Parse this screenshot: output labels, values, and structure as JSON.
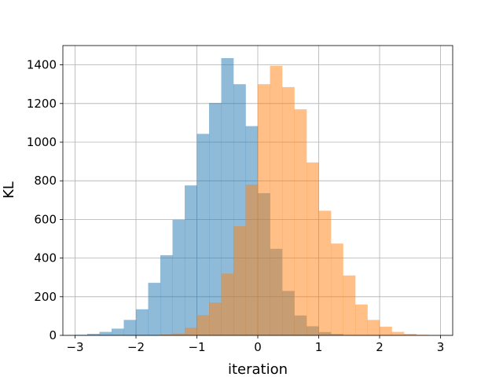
{
  "chart_data": {
    "type": "bar",
    "title": "",
    "xlabel": "iteration",
    "ylabel": "KL",
    "xlim": [
      -3.2,
      3.2
    ],
    "ylim": [
      0,
      1500
    ],
    "xticks": [
      -3,
      -2,
      -1,
      0,
      1,
      2,
      3
    ],
    "xtick_labels": [
      "−3",
      "−2",
      "−1",
      "0",
      "1",
      "2",
      "3"
    ],
    "yticks": [
      0,
      200,
      400,
      600,
      800,
      1000,
      1200,
      1400
    ],
    "ytick_labels": [
      "0",
      "200",
      "400",
      "600",
      "800",
      "1000",
      "1200",
      "1400"
    ],
    "grid": true,
    "series": [
      {
        "color": "#1f77b4",
        "opacity": 0.5,
        "bin_edges": [
          -3.0,
          -2.8,
          -2.6,
          -2.4,
          -2.2,
          -2.0,
          -1.8,
          -1.6,
          -1.4,
          -1.2,
          -1.0,
          -0.8,
          -0.6,
          -0.4,
          -0.2,
          0.0,
          0.2,
          0.4,
          0.6,
          0.8,
          1.0,
          1.2,
          1.4
        ],
        "values": [
          3,
          8,
          18,
          35,
          80,
          135,
          272,
          415,
          598,
          776,
          1043,
          1203,
          1435,
          1300,
          1083,
          736,
          448,
          230,
          103,
          47,
          17,
          7
        ]
      },
      {
        "color": "#ff7f0e",
        "opacity": 0.5,
        "bin_edges": [
          -1.6,
          -1.4,
          -1.2,
          -1.0,
          -0.8,
          -0.6,
          -0.4,
          -0.2,
          0.0,
          0.2,
          0.4,
          0.6,
          0.8,
          1.0,
          1.2,
          1.4,
          1.6,
          1.8,
          2.0,
          2.2,
          2.4,
          2.6,
          2.8,
          3.0
        ],
        "values": [
          5,
          10,
          40,
          105,
          170,
          320,
          565,
          780,
          1300,
          1395,
          1285,
          1170,
          895,
          645,
          475,
          310,
          160,
          80,
          45,
          18,
          8,
          3,
          1
        ]
      }
    ]
  }
}
